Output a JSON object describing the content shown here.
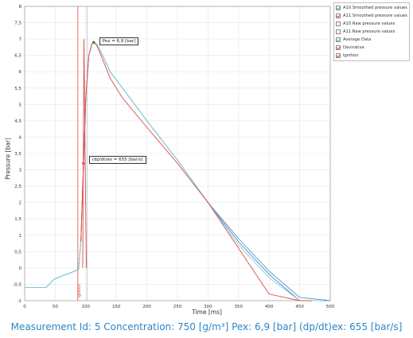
{
  "chart_data": {
    "type": "line",
    "xlabel": "Time [ms]",
    "ylabel": "Pressure [bar]",
    "xlim": [
      0,
      500
    ],
    "ylim": [
      -1,
      8
    ],
    "x_ticks": [
      0,
      50,
      100,
      150,
      200,
      250,
      300,
      350,
      400,
      450,
      500
    ],
    "y_ticks": [
      -1,
      -0.5,
      0,
      0.5,
      1,
      1.5,
      2,
      2.5,
      3,
      3.5,
      4,
      4.5,
      5,
      5.5,
      6,
      6.5,
      7,
      7.5,
      8
    ],
    "x_tick_labels": [
      "0",
      "50",
      "100",
      "150",
      "200",
      "250",
      "300",
      "350",
      "400",
      "450",
      "500"
    ],
    "y_tick_labels": [
      "-1",
      "-0,5",
      "0",
      "0,5",
      "1",
      "1,5",
      "2",
      "2,5",
      "3",
      "3,5",
      "4",
      "4,5",
      "5",
      "5,5",
      "6",
      "6,5",
      "7",
      "7,5",
      "8"
    ],
    "grid": true,
    "legend_position": "top-right",
    "series": [
      {
        "name": "A10 Smoothed pressure values",
        "color": "#5b9bd5",
        "x": [
          0,
          35,
          40,
          48,
          60,
          75,
          88,
          92,
          95,
          100,
          105,
          110,
          113,
          118,
          125,
          140,
          160,
          200,
          250,
          300,
          350,
          400,
          450,
          500
        ],
        "y": [
          -0.6,
          -0.6,
          -0.5,
          -0.35,
          -0.25,
          -0.15,
          -0.05,
          0.8,
          2.5,
          5.2,
          6.5,
          6.85,
          6.9,
          6.85,
          6.6,
          6.0,
          5.5,
          4.5,
          3.3,
          2.0,
          0.9,
          -0.1,
          -0.9,
          -1.0
        ]
      },
      {
        "name": "A11 Smoothed pressure values",
        "color": "#4a86c0",
        "x": [
          0,
          35,
          40,
          48,
          60,
          75,
          88,
          92,
          95,
          100,
          105,
          110,
          113,
          118,
          125,
          140,
          160,
          200,
          250,
          300,
          350,
          400,
          450,
          495
        ],
        "y": [
          -0.6,
          -0.6,
          -0.5,
          -0.35,
          -0.25,
          -0.15,
          -0.05,
          0.8,
          2.5,
          5.2,
          6.5,
          6.85,
          6.9,
          6.85,
          6.6,
          6.0,
          5.5,
          4.5,
          3.3,
          2.0,
          0.8,
          -0.2,
          -1.0,
          -1.0
        ]
      },
      {
        "name": "Average Data",
        "color": "#7fd1d6",
        "x": [
          0,
          35,
          40,
          48,
          60,
          75,
          88,
          92,
          95,
          100,
          105,
          110,
          113,
          118,
          125,
          140,
          160,
          200,
          250,
          300,
          350,
          400,
          450,
          490
        ],
        "y": [
          -0.6,
          -0.6,
          -0.5,
          -0.35,
          -0.25,
          -0.15,
          -0.05,
          0.8,
          2.5,
          5.2,
          6.5,
          6.85,
          6.9,
          6.85,
          6.6,
          6.0,
          5.5,
          4.5,
          3.3,
          2.0,
          0.7,
          -0.3,
          -1.0,
          -1.0
        ]
      },
      {
        "name": "Devirative",
        "color": "#e04a3f",
        "x": [
          92,
          95,
          100,
          105,
          110,
          113,
          118,
          125,
          140,
          160,
          200,
          250,
          300,
          350,
          400,
          450,
          470
        ],
        "y": [
          0.8,
          2.5,
          5.2,
          6.5,
          6.85,
          6.9,
          6.8,
          6.5,
          5.8,
          5.2,
          4.3,
          3.2,
          2.0,
          0.6,
          -0.8,
          -1.0,
          -1.0
        ]
      }
    ],
    "ignition": {
      "name": "Ignition",
      "x": 87,
      "label": "Ignition",
      "color": "#e04a3f"
    },
    "vertical_marker": {
      "x": 102,
      "color": "#aac4e0"
    },
    "red_spike": {
      "x": [
        95,
        97,
        99,
        101
      ],
      "y": [
        0.0,
        7.0,
        3.1,
        0.0
      ],
      "color": "#e04a3f"
    },
    "annotations": [
      {
        "label": "Pex = 6,9 [bar]",
        "x": 113,
        "y": 6.9
      },
      {
        "label": "(dp/dt)ex = 655 [bar/s]",
        "x": 96,
        "y": 3.2
      }
    ]
  },
  "legend": [
    {
      "name": "A10 Smoothed pressure values",
      "checked": true,
      "color": "#5b9bd5"
    },
    {
      "name": "A11 Smoothed pressure values",
      "checked": true,
      "color": "#e04a3f"
    },
    {
      "name": "A10 Raw pressure values",
      "checked": false,
      "color": "#5b9bd5"
    },
    {
      "name": "A11 Raw pressure values",
      "checked": false,
      "color": "#5b9bd5"
    },
    {
      "name": "Average Data",
      "checked": true,
      "color": "#5bbcc2"
    },
    {
      "name": "Devirative",
      "checked": true,
      "color": "#e04a3f"
    },
    {
      "name": "Ignition",
      "checked": true,
      "color": "#e04a3f"
    }
  ],
  "caption": "Measurement Id: 5 Concentration: 750 [g/m³] Pex: 6,9 [bar] (dp/dt)ex: 655 [bar/s]"
}
